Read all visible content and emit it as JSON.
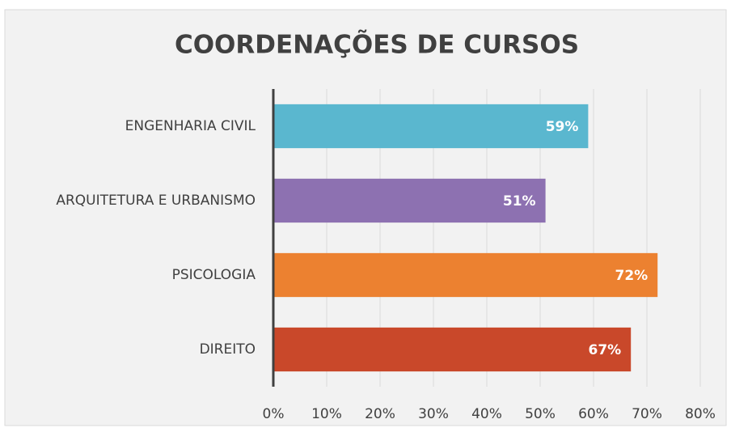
{
  "chart_data": {
    "type": "barh",
    "title": "COORDENAÇÕES DE CURSOS",
    "categories": [
      "ENGENHARIA CIVIL",
      "ARQUITETURA E URBANISMO",
      "PSICOLOGIA",
      "DIREITO"
    ],
    "values": [
      59,
      51,
      72,
      67
    ],
    "value_labels": [
      "59%",
      "51%",
      "72%",
      "67%"
    ],
    "colors": [
      "#5ab7cf",
      "#8d71b1",
      "#ec8130",
      "#c9482a"
    ],
    "xlim": [
      0,
      80
    ],
    "xticks": [
      {
        "value": 0,
        "label": "0%"
      },
      {
        "value": 10,
        "label": "10%"
      },
      {
        "value": 20,
        "label": "20%"
      },
      {
        "value": 30,
        "label": "30%"
      },
      {
        "value": 40,
        "label": "40%"
      },
      {
        "value": 50,
        "label": "50%"
      },
      {
        "value": 60,
        "label": "60%"
      },
      {
        "value": 70,
        "label": "70%"
      },
      {
        "value": 80,
        "label": "80%"
      }
    ],
    "grid": true
  }
}
